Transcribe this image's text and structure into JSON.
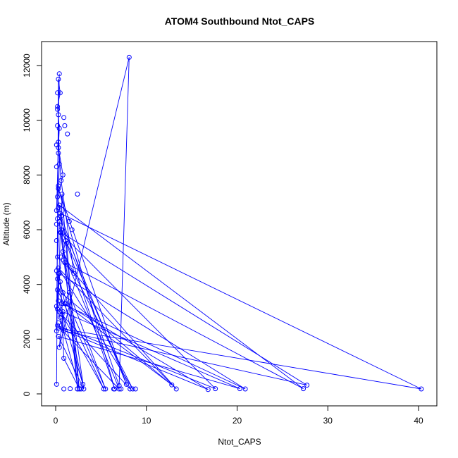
{
  "chart_data": {
    "type": "line",
    "title": "ATOM4 Southbound Ntot_CAPS",
    "xlabel": "Ntot_CAPS",
    "ylabel": "Altitude (m)",
    "xlim": [
      0,
      40
    ],
    "ylim": [
      0,
      12000
    ],
    "x_ticks": [
      0,
      10,
      20,
      30,
      40
    ],
    "y_ticks": [
      0,
      2000,
      4000,
      6000,
      8000,
      10000,
      12000
    ],
    "x_tick_labels": [
      "0",
      "10",
      "20",
      "30",
      "40"
    ],
    "y_tick_labels": [
      "0",
      "2000",
      "4000",
      "6000",
      "8000",
      "10000",
      "12000"
    ],
    "grid": false,
    "colors": {
      "series": "#0000ff",
      "axis": "#000000",
      "background": "#ffffff"
    },
    "marker": "open-circle",
    "series": [
      {
        "points": [
          [
            0.1,
            350
          ],
          [
            0.3,
            11500
          ],
          [
            0.5,
            11000
          ],
          [
            0.2,
            10500
          ],
          [
            0.4,
            9700
          ],
          [
            0.3,
            9000
          ],
          [
            0.8,
            8000
          ],
          [
            0.2,
            7200
          ],
          [
            0.5,
            6600
          ],
          [
            1.2,
            5500
          ],
          [
            2.6,
            180
          ],
          [
            0.4,
            6300
          ],
          [
            0.2,
            5000
          ],
          [
            2.0,
            4400
          ],
          [
            0.6,
            7800
          ],
          [
            0.3,
            9200
          ],
          [
            0.1,
            6700
          ],
          [
            7.8,
            350
          ],
          [
            0.3,
            7500
          ],
          [
            6.5,
            180
          ],
          [
            1.1,
            5600
          ],
          [
            0.2,
            4200
          ],
          [
            5.5,
            180
          ],
          [
            1.5,
            3700
          ],
          [
            0.4,
            3000
          ],
          [
            8.2,
            180
          ],
          [
            0.6,
            6000
          ],
          [
            0.7,
            7300
          ],
          [
            2.4,
            180
          ],
          [
            0.4,
            6900
          ],
          [
            27.3,
            190
          ],
          [
            1.0,
            4800
          ],
          [
            13.3,
            180
          ],
          [
            0.3,
            4600
          ],
          [
            8.5,
            180
          ],
          [
            0.8,
            5200
          ],
          [
            7.0,
            180
          ],
          [
            0.2,
            2500
          ],
          [
            17.6,
            190
          ],
          [
            0.5,
            5900
          ],
          [
            0.3,
            3400
          ],
          [
            3.0,
            350
          ],
          [
            0.5,
            4100
          ],
          [
            0.7,
            3300
          ],
          [
            20.9,
            180
          ],
          [
            0.4,
            4400
          ],
          [
            0.9,
            2300
          ],
          [
            27.7,
            320
          ],
          [
            0.6,
            5900
          ],
          [
            3.1,
            180
          ],
          [
            0.3,
            2100
          ],
          [
            20.3,
            190
          ],
          [
            0.8,
            3000
          ],
          [
            0.4,
            1700
          ],
          [
            8.1,
            12300
          ],
          [
            7.0,
            300
          ],
          [
            0.5,
            6600
          ],
          [
            40.3,
            180
          ],
          [
            0.3,
            2400
          ],
          [
            16.8,
            160
          ],
          [
            1.0,
            3300
          ],
          [
            12.8,
            330
          ],
          [
            0.2,
            3800
          ],
          [
            5.3,
            180
          ],
          [
            0.7,
            2900
          ],
          [
            0.9,
            1300
          ],
          [
            2.6,
            190
          ],
          [
            0.2,
            3100
          ],
          [
            0.3,
            4400
          ],
          [
            0.1,
            2300
          ],
          [
            0.2,
            6400
          ],
          [
            0.4,
            8400
          ],
          [
            0.3,
            10200
          ],
          [
            0.4,
            11700
          ]
        ],
        "extra_points": [
          [
            0.1,
            9100
          ],
          [
            0.1,
            8300
          ],
          [
            0.1,
            6200
          ],
          [
            0.1,
            5600
          ],
          [
            0.1,
            4500
          ],
          [
            0.1,
            3200
          ],
          [
            0.2,
            11000
          ],
          [
            0.2,
            10400
          ],
          [
            0.2,
            9800
          ],
          [
            0.3,
            8800
          ],
          [
            0.3,
            7600
          ],
          [
            0.3,
            6800
          ],
          [
            0.9,
            10100
          ],
          [
            1.0,
            9800
          ],
          [
            1.3,
            9500
          ],
          [
            2.4,
            7300
          ],
          [
            1.8,
            6000
          ],
          [
            1.5,
            6300
          ],
          [
            0.6,
            6500
          ],
          [
            0.6,
            5000
          ],
          [
            0.8,
            3700
          ],
          [
            1.1,
            3300
          ],
          [
            0.5,
            2800
          ],
          [
            0.3,
            2600
          ],
          [
            2.4,
            180
          ],
          [
            2.8,
            180
          ],
          [
            1.6,
            190
          ],
          [
            0.9,
            180
          ],
          [
            6.4,
            180
          ],
          [
            7.2,
            180
          ],
          [
            8.8,
            180
          ]
        ]
      }
    ]
  }
}
